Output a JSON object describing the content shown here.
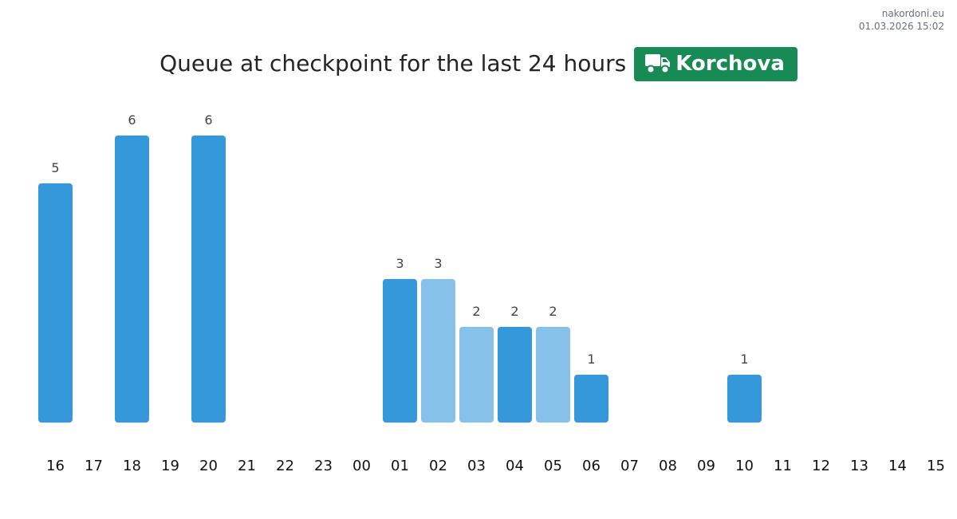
{
  "source": {
    "site": "nakordoni.eu",
    "timestamp": "01.03.2026 15:02"
  },
  "header": {
    "title": "Queue at checkpoint for the last 24 hours",
    "checkpoint": "Korchova",
    "icon": "truck-icon"
  },
  "colors": {
    "bar_primary": "#3598db",
    "bar_light": "#85c1e9",
    "badge": "#188a55",
    "label_text": "#444444",
    "tick_text": "#111111"
  },
  "chart_data": {
    "type": "bar",
    "title": "Queue at checkpoint for the last 24 hours",
    "xlabel": "",
    "ylabel": "",
    "ylim": [
      0,
      6
    ],
    "grid": false,
    "categories": [
      "16",
      "17",
      "18",
      "19",
      "20",
      "21",
      "22",
      "23",
      "00",
      "01",
      "02",
      "03",
      "04",
      "05",
      "06",
      "07",
      "08",
      "09",
      "10",
      "11",
      "12",
      "13",
      "14",
      "15"
    ],
    "values": [
      5,
      0,
      6,
      0,
      6,
      0,
      0,
      0,
      0,
      3,
      3,
      2,
      2,
      2,
      1,
      0,
      0,
      0,
      1,
      0,
      0,
      0,
      0,
      0
    ],
    "shade": [
      "primary",
      "primary",
      "primary",
      "primary",
      "primary",
      "primary",
      "primary",
      "primary",
      "primary",
      "primary",
      "light",
      "light",
      "primary",
      "light",
      "primary",
      "primary",
      "primary",
      "primary",
      "primary",
      "primary",
      "primary",
      "primary",
      "primary",
      "primary"
    ]
  }
}
